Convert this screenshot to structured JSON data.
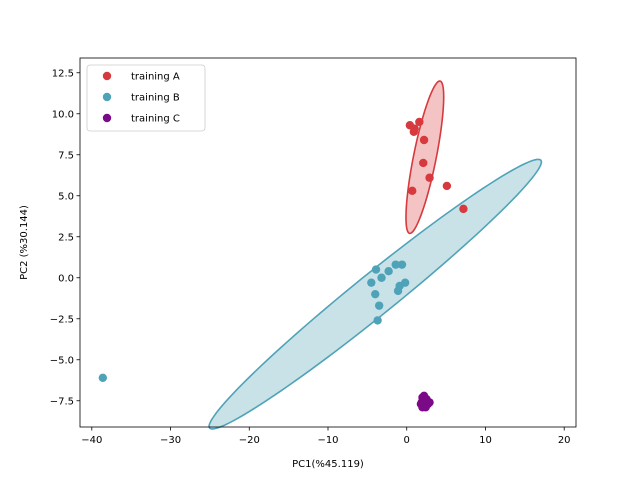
{
  "chart_data": {
    "type": "scatter",
    "xlabel": "PC1(%45.119)",
    "ylabel": "PC2 (%30.144)",
    "xlim": [
      -41.5,
      21.5
    ],
    "ylim": [
      -9.1,
      13.4
    ],
    "xticks": [
      -40,
      -30,
      -20,
      -10,
      0,
      10,
      20
    ],
    "yticks": [
      -7.5,
      -5.0,
      -2.5,
      0.0,
      2.5,
      5.0,
      7.5,
      10.0,
      12.5
    ],
    "xtick_labels": [
      "−40",
      "−30",
      "−20",
      "−10",
      "0",
      "10",
      "20"
    ],
    "ytick_labels": [
      "−7.5",
      "−5.0",
      "−2.5",
      "0.0",
      "2.5",
      "5.0",
      "7.5",
      "10.0",
      "12.5"
    ],
    "grid": false,
    "legend_position": "top-left",
    "series": [
      {
        "name": "training A",
        "color": "#d63a3e",
        "fill": "#f4c3c4",
        "points": [
          [
            0.4,
            9.3
          ],
          [
            1.0,
            9.1
          ],
          [
            0.9,
            8.9
          ],
          [
            1.6,
            9.5
          ],
          [
            2.2,
            8.4
          ],
          [
            2.1,
            7.0
          ],
          [
            2.9,
            6.1
          ],
          [
            0.7,
            5.3
          ],
          [
            5.1,
            5.6
          ],
          [
            7.2,
            4.2
          ]
        ],
        "ellipse": {
          "cx": 2.3,
          "cy": 7.35,
          "rx": 5.05,
          "ry": 1.35,
          "angle": 66
        }
      },
      {
        "name": "training B",
        "color": "#4fa3b8",
        "fill": "#c9e2e8",
        "points": [
          [
            -38.6,
            -6.1
          ],
          [
            -4.5,
            -0.3
          ],
          [
            -3.9,
            0.5
          ],
          [
            -3.2,
            0.0
          ],
          [
            -2.3,
            0.4
          ],
          [
            -1.4,
            0.8
          ],
          [
            -0.6,
            0.8
          ],
          [
            -0.2,
            -0.3
          ],
          [
            -0.9,
            -0.5
          ],
          [
            -1.1,
            -0.8
          ],
          [
            -4.0,
            -1.0
          ],
          [
            -3.5,
            -1.7
          ],
          [
            -3.7,
            -2.6
          ]
        ],
        "ellipse": {
          "cx": -4.0,
          "cy": -1.0,
          "rx": 22.6,
          "ry": 1.5,
          "angle": 21
        }
      },
      {
        "name": "training C",
        "color": "#7a0a87",
        "points": [
          [
            2.0,
            -7.3
          ],
          [
            2.3,
            -7.5
          ],
          [
            1.9,
            -7.6
          ],
          [
            2.5,
            -7.4
          ],
          [
            2.1,
            -7.8
          ],
          [
            2.7,
            -7.7
          ],
          [
            2.2,
            -7.2
          ],
          [
            2.4,
            -7.9
          ],
          [
            1.8,
            -7.7
          ],
          [
            2.6,
            -7.5
          ],
          [
            2.0,
            -7.9
          ],
          [
            2.9,
            -7.6
          ]
        ]
      }
    ]
  }
}
